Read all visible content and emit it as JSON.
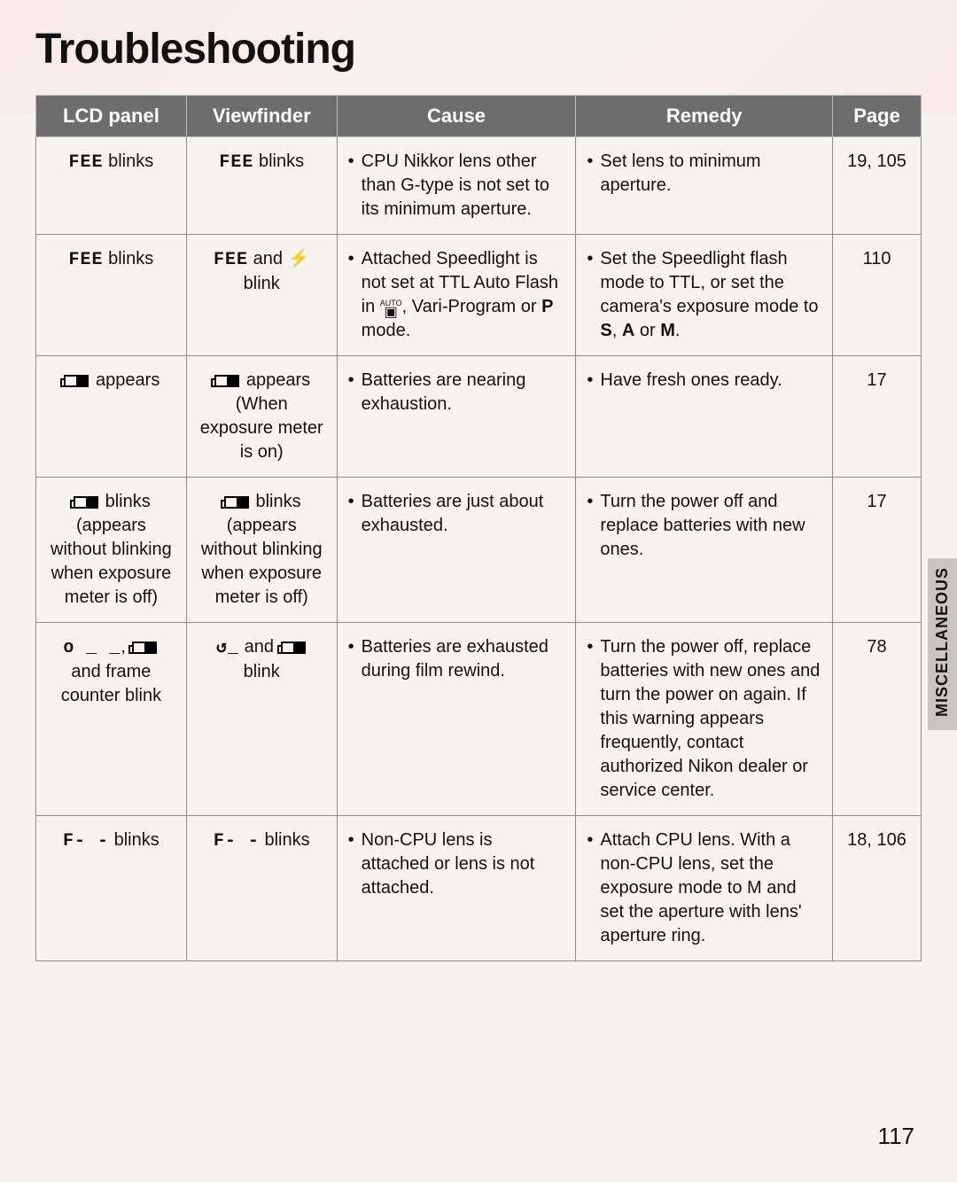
{
  "title": "Troubleshooting",
  "side_tab": "MISCELLANEOUS",
  "page_number": "117",
  "table": {
    "columns": [
      "LCD panel",
      "Viewfinder",
      "Cause",
      "Remedy",
      "Page"
    ],
    "col_widths": [
      "17%",
      "17%",
      "27%",
      "29%",
      "10%"
    ],
    "header_bg": "#6d6d6d",
    "header_fg": "#ffffff",
    "border_color": "#8a8a8a",
    "cell_bg": "#f7f4f0",
    "rows": [
      {
        "lcd": {
          "seg": "FEE",
          "rest": " blinks"
        },
        "vf": {
          "seg": "FEE",
          "rest": " blinks"
        },
        "cause": "CPU Nikkor lens other than G-type is not set to its minimum aperture.",
        "remedy": "Set lens to minimum aperture.",
        "page": "19, 105"
      },
      {
        "lcd": {
          "seg": "FEE",
          "rest": " blinks"
        },
        "vf_html": "<span class='seg'>FEE</span> and <span class='bolt'>⚡</span> blink",
        "cause_html": "Attached Speedlight is not set at TTL Auto Flash in <span class='auto-cam'><span class='a'>AUTO</span><br><span class='c'>▣</span></span>, Vari-Program or <b>P</b> mode.",
        "remedy_html": "Set the Speedlight flash mode to TTL, or set the camera's exposure mode to <b>S</b>, <b>A</b> or <b>M</b>.",
        "page": "110"
      },
      {
        "lcd_html": "<span class='batt-icon'></span> appears",
        "vf_html": "<span class='batt-icon'></span> appears (When exposure meter is on)",
        "cause": "Batteries are nearing exhaustion.",
        "remedy": "Have fresh ones ready.",
        "page": "17"
      },
      {
        "lcd_html": "<span class='batt-icon'></span> blinks (appears without blinking when exposure meter is off)",
        "vf_html": "<span class='batt-icon'></span> blinks (appears without blinking when exposure meter is off)",
        "cause": "Batteries are just about exhausted.",
        "remedy": "Turn the power off and replace batteries with new ones.",
        "page": "17"
      },
      {
        "lcd_html": "<span class='seg'>o _ _</span>, <span class='batt-icon'></span> and frame counter blink",
        "vf_html": "<span class='seg'>&#8634;_</span> and <span class='batt-icon'></span> blink",
        "cause": "Batteries are exhausted during film rewind.",
        "remedy": "Turn the power off, replace batteries with new ones and turn the power on again. If this warning appears frequently, contact authorized Nikon dealer or service center.",
        "page": "78"
      },
      {
        "lcd": {
          "seg": "F- -",
          "rest": " blinks"
        },
        "vf": {
          "seg": "F- -",
          "rest": " blinks"
        },
        "cause": "Non-CPU lens is attached or lens is not attached.",
        "remedy": "Attach CPU lens. With a non-CPU lens, set the exposure mode to M and set the aperture with lens' aperture ring.",
        "page": "18, 106"
      }
    ]
  }
}
